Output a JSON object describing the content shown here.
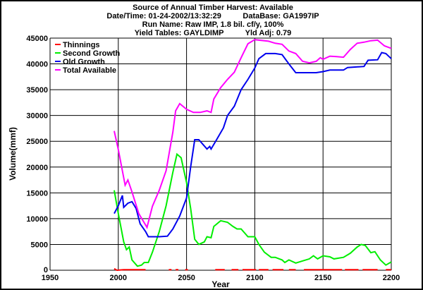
{
  "chart_data": {
    "type": "line",
    "title_lines": [
      "Source of Annual Timber Harvest: Available",
      "Date/Time: 01-24-2002/13:32:29          DataBase: GA1997IP",
      "Run Name: Raw IMP, 1.8 bil. cf/y, 100%",
      "Yield Tables: GAYLDIMP          Yld Adj: 0.79"
    ],
    "xlabel": "Year",
    "ylabel": "Volume(mmf)",
    "xlim": [
      1950,
      2200
    ],
    "ylim": [
      0,
      45000
    ],
    "xticks": [
      1950,
      2000,
      2050,
      2100,
      2150,
      2200
    ],
    "yticks": [
      0,
      5000,
      10000,
      15000,
      20000,
      25000,
      30000,
      35000,
      40000,
      45000
    ],
    "grid": true,
    "legend_position": "top-left",
    "series": [
      {
        "name": "Thinnings",
        "color": "#ff0000",
        "points": [
          [
            1997,
            300
          ],
          [
            1999,
            0
          ],
          [
            2004,
            100
          ],
          [
            2020,
            100
          ],
          null,
          [
            2037,
            100
          ],
          [
            2039,
            100
          ],
          null,
          [
            2042,
            100
          ],
          [
            2044,
            100
          ],
          null,
          [
            2049,
            100
          ],
          [
            2051,
            100
          ],
          null,
          [
            2071,
            100
          ],
          [
            2078,
            100
          ],
          null,
          [
            2083,
            100
          ],
          [
            2088,
            100
          ],
          null,
          [
            2091,
            100
          ],
          [
            2101,
            100
          ],
          null,
          [
            2103,
            100
          ],
          [
            2110,
            100
          ],
          null,
          [
            2113,
            100
          ],
          [
            2121,
            100
          ],
          null,
          [
            2125,
            100
          ],
          [
            2130,
            100
          ],
          null,
          [
            2136,
            100
          ],
          [
            2164,
            100
          ],
          null,
          [
            2166,
            100
          ],
          [
            2176,
            100
          ],
          null,
          [
            2179,
            100
          ],
          [
            2190,
            100
          ],
          null,
          [
            2196,
            100
          ],
          [
            2200,
            100
          ]
        ]
      },
      {
        "name": "Second Growth",
        "color": "#00ee00",
        "points": [
          [
            1997,
            15500
          ],
          [
            2000,
            11000
          ],
          [
            2004,
            5500
          ],
          [
            2006,
            4000
          ],
          [
            2008,
            4500
          ],
          [
            2010,
            2000
          ],
          [
            2014,
            800
          ],
          [
            2017,
            1000
          ],
          [
            2019,
            1500
          ],
          [
            2022,
            1500
          ],
          [
            2025,
            3500
          ],
          [
            2030,
            7500
          ],
          [
            2035,
            12500
          ],
          [
            2040,
            19000
          ],
          [
            2043,
            22500
          ],
          [
            2046,
            21800
          ],
          [
            2050,
            17000
          ],
          [
            2053,
            12000
          ],
          [
            2056,
            6000
          ],
          [
            2059,
            5000
          ],
          [
            2063,
            5500
          ],
          [
            2065,
            6500
          ],
          [
            2068,
            6300
          ],
          [
            2070,
            8500
          ],
          [
            2075,
            9600
          ],
          [
            2080,
            9300
          ],
          [
            2084,
            8500
          ],
          [
            2087,
            8000
          ],
          [
            2090,
            8000
          ],
          [
            2095,
            6500
          ],
          [
            2100,
            6500
          ],
          [
            2103,
            5000
          ],
          [
            2107,
            3500
          ],
          [
            2112,
            2500
          ],
          [
            2115,
            2500
          ],
          [
            2120,
            2000
          ],
          [
            2122,
            1500
          ],
          [
            2125,
            2000
          ],
          [
            2130,
            1400
          ],
          [
            2135,
            1800
          ],
          [
            2140,
            2200
          ],
          [
            2143,
            2800
          ],
          [
            2146,
            2200
          ],
          [
            2150,
            2800
          ],
          [
            2155,
            2600
          ],
          [
            2158,
            2200
          ],
          [
            2165,
            2500
          ],
          [
            2170,
            3300
          ],
          [
            2175,
            4500
          ],
          [
            2178,
            5000
          ],
          [
            2181,
            4800
          ],
          [
            2185,
            3400
          ],
          [
            2188,
            3600
          ],
          [
            2192,
            2000
          ],
          [
            2196,
            1000
          ],
          [
            2200,
            1600
          ]
        ]
      },
      {
        "name": "Old Growth",
        "color": "#0000ee",
        "points": [
          [
            1997,
            11000
          ],
          [
            2000,
            12500
          ],
          [
            2003,
            14500
          ],
          [
            2004,
            12200
          ],
          [
            2007,
            13000
          ],
          [
            2010,
            13300
          ],
          [
            2013,
            12000
          ],
          [
            2016,
            9000
          ],
          [
            2020,
            7500
          ],
          [
            2022,
            6500
          ],
          [
            2030,
            6500
          ],
          [
            2036,
            6600
          ],
          [
            2040,
            8000
          ],
          [
            2045,
            10500
          ],
          [
            2050,
            14000
          ],
          [
            2053,
            20000
          ],
          [
            2056,
            25300
          ],
          [
            2059,
            25300
          ],
          [
            2065,
            23500
          ],
          [
            2067,
            24000
          ],
          [
            2068,
            23500
          ],
          [
            2072,
            25300
          ],
          [
            2077,
            27600
          ],
          [
            2080,
            30000
          ],
          [
            2085,
            31800
          ],
          [
            2090,
            35000
          ],
          [
            2095,
            37000
          ],
          [
            2100,
            39200
          ],
          [
            2103,
            41000
          ],
          [
            2108,
            42000
          ],
          [
            2115,
            42000
          ],
          [
            2120,
            41800
          ],
          [
            2125,
            40000
          ],
          [
            2130,
            38300
          ],
          [
            2145,
            38300
          ],
          [
            2150,
            38500
          ],
          [
            2155,
            38800
          ],
          [
            2165,
            38800
          ],
          [
            2168,
            39300
          ],
          [
            2180,
            39500
          ],
          [
            2183,
            40700
          ],
          [
            2190,
            40800
          ],
          [
            2193,
            42200
          ],
          [
            2196,
            42000
          ],
          [
            2200,
            41000
          ]
        ]
      },
      {
        "name": "Total Available",
        "color": "#ff00ff",
        "points": [
          [
            1997,
            27000
          ],
          [
            2000,
            23400
          ],
          [
            2005,
            16500
          ],
          [
            2007,
            17500
          ],
          [
            2010,
            15200
          ],
          [
            2015,
            11000
          ],
          [
            2021,
            8300
          ],
          [
            2025,
            12400
          ],
          [
            2030,
            15500
          ],
          [
            2035,
            19300
          ],
          [
            2040,
            26800
          ],
          [
            2042,
            30900
          ],
          [
            2045,
            32300
          ],
          [
            2050,
            31200
          ],
          [
            2055,
            30600
          ],
          [
            2060,
            30600
          ],
          [
            2065,
            30900
          ],
          [
            2068,
            30600
          ],
          [
            2070,
            33200
          ],
          [
            2075,
            35400
          ],
          [
            2080,
            37000
          ],
          [
            2085,
            38400
          ],
          [
            2090,
            41200
          ],
          [
            2095,
            43900
          ],
          [
            2100,
            44700
          ],
          [
            2110,
            44400
          ],
          [
            2115,
            44000
          ],
          [
            2120,
            43800
          ],
          [
            2125,
            42500
          ],
          [
            2130,
            42000
          ],
          [
            2135,
            40500
          ],
          [
            2140,
            40200
          ],
          [
            2145,
            40500
          ],
          [
            2148,
            41200
          ],
          [
            2150,
            40900
          ],
          [
            2155,
            41500
          ],
          [
            2160,
            41400
          ],
          [
            2165,
            41300
          ],
          [
            2170,
            42800
          ],
          [
            2175,
            44000
          ],
          [
            2180,
            44200
          ],
          [
            2185,
            44500
          ],
          [
            2190,
            44600
          ],
          [
            2195,
            43500
          ],
          [
            2200,
            43000
          ]
        ]
      }
    ]
  }
}
